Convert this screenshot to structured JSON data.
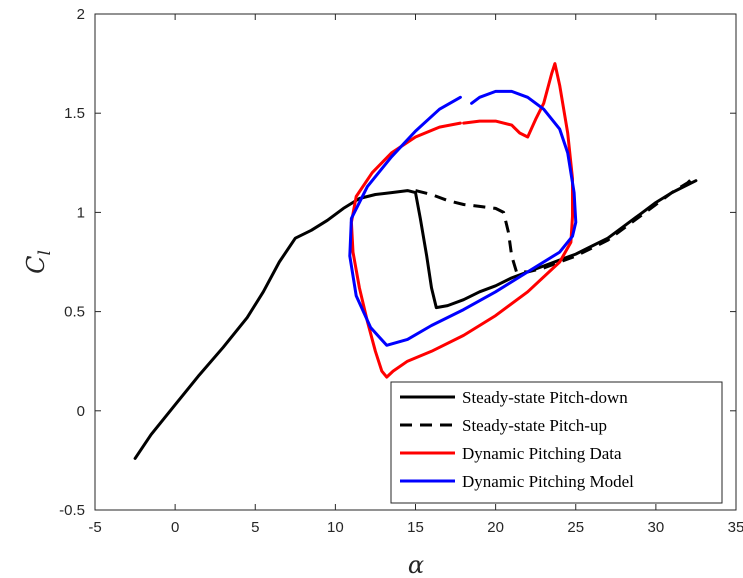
{
  "chart_data": {
    "type": "line",
    "xlabel": "α",
    "ylabel_main": "C",
    "ylabel_sub": "l",
    "xlim": [
      -5,
      35
    ],
    "ylim": [
      -0.5,
      2
    ],
    "xticks": [
      -5,
      0,
      5,
      10,
      15,
      20,
      25,
      30,
      35
    ],
    "yticks": [
      -0.5,
      0,
      0.5,
      1,
      1.5,
      2
    ],
    "xtick_labels": [
      "-5",
      "0",
      "5",
      "10",
      "15",
      "20",
      "25",
      "30",
      "35"
    ],
    "ytick_labels": [
      "-0.5",
      "0",
      "0.5",
      "1",
      "1.5",
      "2"
    ],
    "grid": false,
    "legend_position": "bottom-right",
    "series": [
      {
        "name": "Steady-state Pitch-down",
        "color": "#000000",
        "dash": "solid",
        "x": [
          -2.5,
          -1.5,
          0,
          1.5,
          3,
          4.5,
          5.5,
          6.5,
          7.5,
          8.5,
          9.5,
          10.5,
          11.5,
          12.5,
          13.5,
          14.5,
          15,
          15.3,
          15.7,
          16.0,
          16.3,
          17,
          18,
          19,
          20,
          21,
          22,
          23,
          24,
          25,
          26,
          27,
          28,
          29,
          30,
          31,
          32,
          32.5
        ],
        "y": [
          -0.24,
          -0.12,
          0.03,
          0.18,
          0.32,
          0.47,
          0.6,
          0.75,
          0.87,
          0.91,
          0.96,
          1.02,
          1.07,
          1.09,
          1.1,
          1.11,
          1.1,
          0.97,
          0.78,
          0.62,
          0.52,
          0.53,
          0.56,
          0.6,
          0.63,
          0.67,
          0.7,
          0.73,
          0.76,
          0.79,
          0.83,
          0.87,
          0.93,
          0.99,
          1.05,
          1.1,
          1.14,
          1.16
        ]
      },
      {
        "name": "Steady-state Pitch-up",
        "color": "#000000",
        "dash": "dashed",
        "x": [
          15,
          16,
          17,
          18,
          19,
          20,
          20.5,
          20.8,
          21.0,
          21.3,
          22,
          23,
          24,
          25,
          26,
          27,
          28,
          29,
          30,
          31,
          32,
          32.5
        ],
        "y": [
          1.11,
          1.09,
          1.06,
          1.04,
          1.03,
          1.02,
          1.0,
          0.9,
          0.78,
          0.7,
          0.7,
          0.72,
          0.75,
          0.78,
          0.82,
          0.86,
          0.92,
          0.98,
          1.04,
          1.1,
          1.15,
          1.19
        ]
      },
      {
        "name": "Dynamic Pitching Data",
        "color": "#ff0000",
        "dash": "solid",
        "x": [
          17.8,
          16.5,
          15.0,
          13.5,
          12.3,
          11.3,
          11.0,
          11.1,
          11.5,
          12.0,
          12.5,
          12.9,
          13.2,
          13.6,
          14.5,
          16,
          18,
          20,
          22,
          24,
          24.7,
          24.8,
          24.8,
          24.5,
          24.0,
          23.7,
          23.5,
          23.0,
          22.5,
          22.0,
          21.5,
          21.0,
          20,
          19,
          18
        ],
        "y": [
          1.45,
          1.43,
          1.38,
          1.3,
          1.2,
          1.08,
          0.95,
          0.8,
          0.62,
          0.45,
          0.3,
          0.2,
          0.17,
          0.2,
          0.25,
          0.3,
          0.38,
          0.48,
          0.6,
          0.75,
          0.85,
          0.98,
          1.17,
          1.4,
          1.64,
          1.75,
          1.7,
          1.55,
          1.47,
          1.38,
          1.4,
          1.44,
          1.46,
          1.46,
          1.45
        ]
      },
      {
        "name": "Dynamic Pitching Model",
        "color": "#0000ff",
        "dash": "solid",
        "x": [
          17.8,
          16.5,
          15.0,
          13.5,
          12.0,
          11.0,
          10.9,
          11.3,
          12.2,
          13.2,
          14.5,
          16,
          18,
          20,
          22,
          24,
          24.8,
          25.0,
          24.9,
          24.5,
          24.0,
          23.0,
          22.0,
          21.0,
          20.0,
          19.0,
          18.5
        ],
        "y": [
          1.58,
          1.52,
          1.41,
          1.28,
          1.13,
          0.97,
          0.78,
          0.58,
          0.42,
          0.33,
          0.36,
          0.43,
          0.51,
          0.6,
          0.7,
          0.8,
          0.88,
          0.95,
          1.1,
          1.3,
          1.42,
          1.52,
          1.58,
          1.61,
          1.61,
          1.58,
          1.55
        ]
      }
    ]
  }
}
